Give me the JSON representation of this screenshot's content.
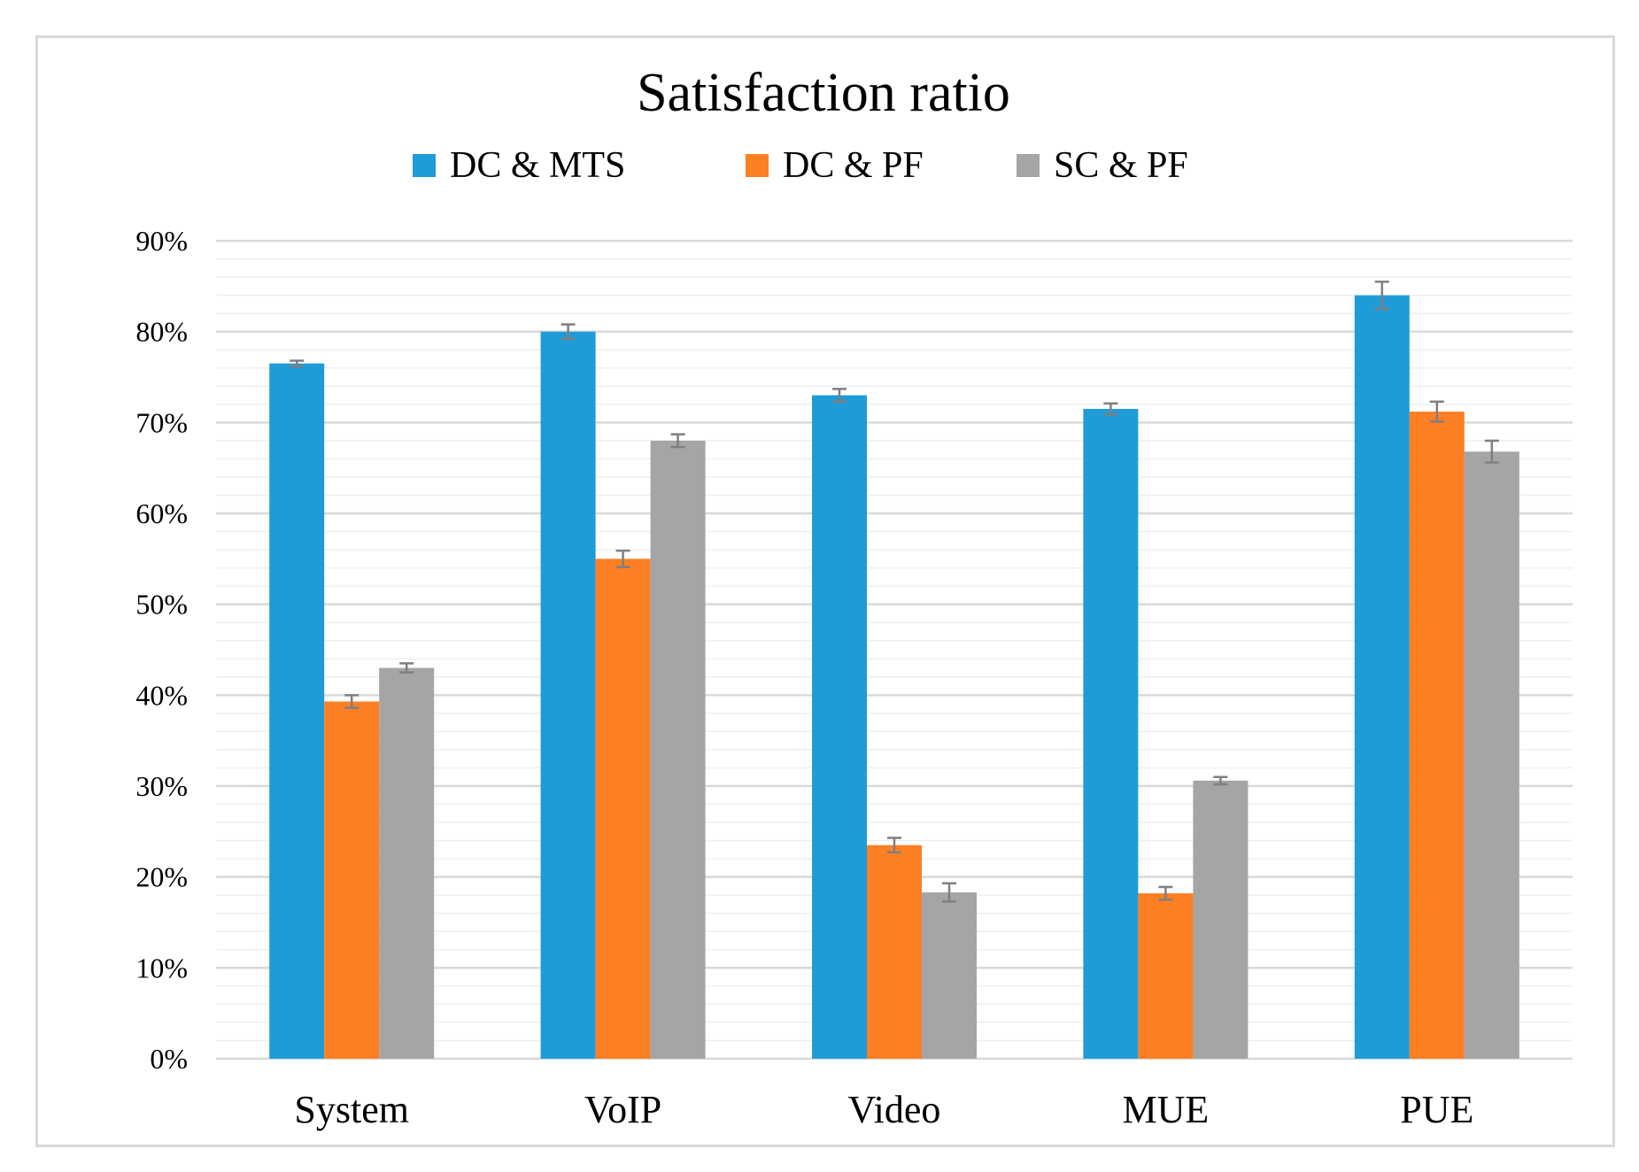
{
  "chart_data": {
    "type": "bar",
    "title": "Satisfaction ratio",
    "xlabel": "",
    "ylabel": "",
    "categories": [
      "System",
      "VoIP",
      "Video",
      "MUE",
      "PUE"
    ],
    "series": [
      {
        "name": "DC & MTS",
        "color": "#1f9bd8",
        "values": [
          76.5,
          80.0,
          73.0,
          71.5,
          84.0
        ],
        "errors": [
          0.3,
          0.8,
          0.7,
          0.6,
          1.5
        ]
      },
      {
        "name": "DC & PF",
        "color": "#fd7f24",
        "values": [
          39.3,
          55.0,
          23.5,
          18.2,
          71.2
        ],
        "errors": [
          0.7,
          0.9,
          0.8,
          0.7,
          1.1
        ]
      },
      {
        "name": "SC & PF",
        "color": "#a5a5a5",
        "values": [
          43.0,
          68.0,
          18.3,
          30.6,
          66.8
        ],
        "errors": [
          0.5,
          0.7,
          1.0,
          0.4,
          1.2
        ]
      }
    ],
    "ylim": [
      0,
      90
    ],
    "y_ticks": [
      0,
      10,
      20,
      30,
      40,
      50,
      60,
      70,
      80,
      90
    ],
    "y_tick_labels": [
      "0%",
      "10%",
      "20%",
      "30%",
      "40%",
      "50%",
      "60%",
      "70%",
      "80%",
      "90%"
    ],
    "grid": true,
    "legend_position": "top",
    "error_bar_color": "#7f7f7f",
    "gridline_color": "#d9d9d9",
    "minor_gridline_color": "#efefef"
  }
}
